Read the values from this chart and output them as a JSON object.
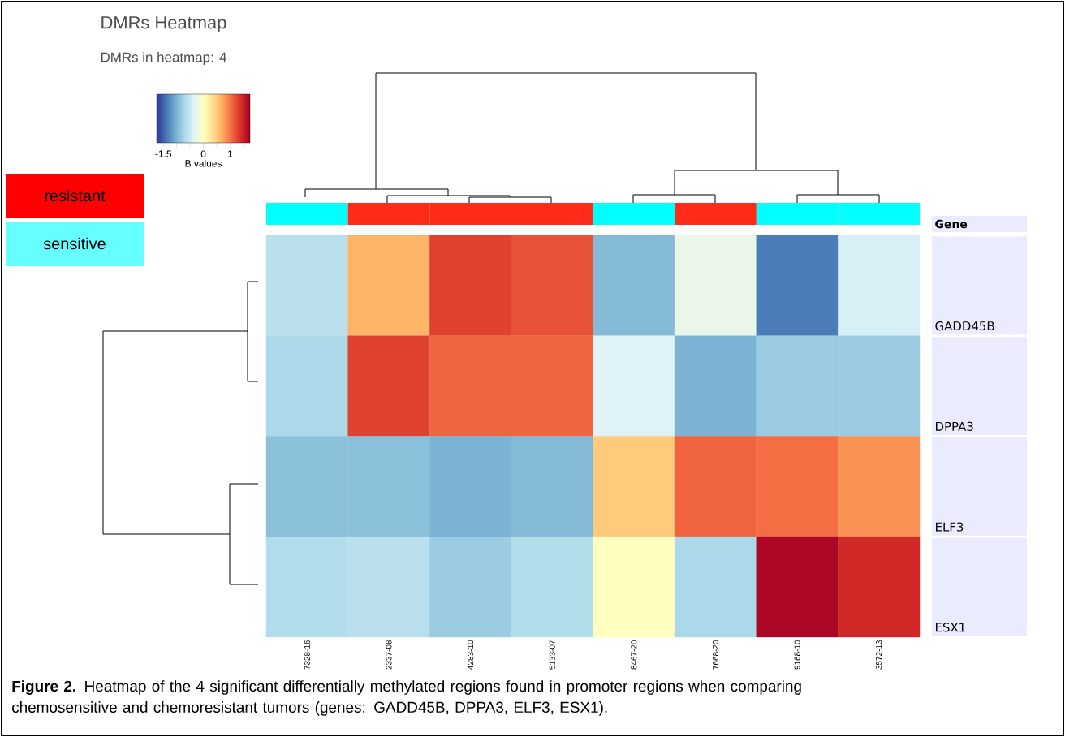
{
  "chart_data": {
    "type": "heatmap",
    "title": "DMRs Heatmap",
    "subtitle": "DMRs in heatmap: 4",
    "categories": [
      "7328-16",
      "2337-08",
      "4283-10",
      "5133-07",
      "8467-20",
      "7668-20",
      "9168-10",
      "3572-13"
    ],
    "y_categories": [
      "GADD45B",
      "DPPA3",
      "ELF3",
      "ESX1"
    ],
    "ylabel": "Gene",
    "cells": [
      [
        -0.6,
        0.65,
        1.3,
        1.2,
        -0.95,
        -0.25,
        -1.35,
        -0.4
      ],
      [
        -0.7,
        1.3,
        1.1,
        1.1,
        -0.35,
        -1.0,
        -0.8,
        -0.8
      ],
      [
        -0.9,
        -0.9,
        -1.0,
        -0.95,
        0.5,
        1.1,
        1.05,
        0.85
      ],
      [
        -0.65,
        -0.6,
        -0.8,
        -0.65,
        0.0,
        -0.7,
        1.7,
        1.45
      ]
    ],
    "clim": [
      -1.75,
      1.75
    ],
    "cticks": [
      -1.5,
      {
        "value": -1,
        "label": null
      },
      {
        "value": -0.5,
        "label": null
      },
      0,
      {
        "value": 0.5,
        "label": null
      },
      1,
      {
        "value": 1.5,
        "label": null
      }
    ],
    "clabel": "B values",
    "annotations": [
      "resistant",
      "sensitive",
      "**Figure 2.** Heatmap of the 4 significant differentially methylated regions found in promoter regions when comparing chemosensitive and chemoresistant tumors (genes: GADD45B, DPPA3, ELF3, ESX1)."
    ]
  }
}
